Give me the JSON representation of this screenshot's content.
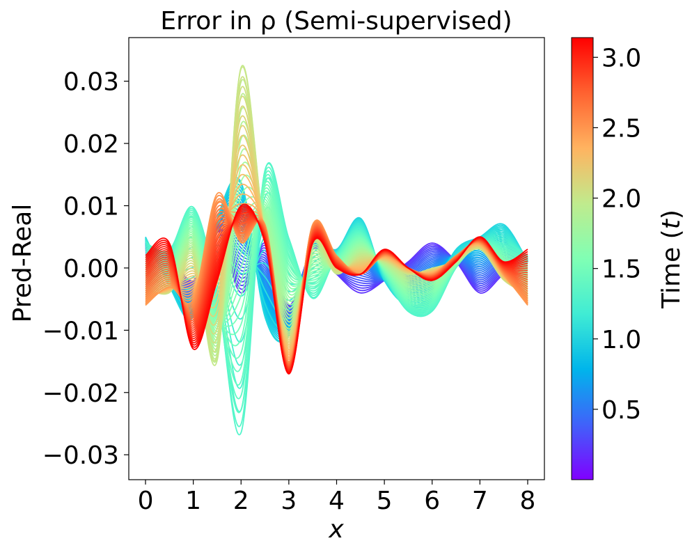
{
  "chart_data": {
    "type": "line",
    "title": "Error in ρ (Semi-supervised)",
    "xlabel": "x",
    "ylabel": "Pred-Real",
    "xlim": [
      -0.35,
      8.35
    ],
    "ylim": [
      -0.034,
      0.037
    ],
    "xticks": [
      0,
      1,
      2,
      3,
      4,
      5,
      6,
      7,
      8
    ],
    "xtick_labels": [
      "0",
      "1",
      "2",
      "3",
      "4",
      "5",
      "6",
      "7",
      "8"
    ],
    "yticks": [
      0.03,
      0.02,
      0.01,
      0.0,
      -0.01,
      -0.02,
      -0.03
    ],
    "ytick_labels": [
      "0.03",
      "0.02",
      "0.01",
      "0.00",
      "−0.01",
      "−0.02",
      "−0.03"
    ],
    "grid": false,
    "colormap": "rainbow",
    "series_note": "family of error curves, one per time t, colored by t",
    "time_range": [
      0.0,
      3.14
    ],
    "series": [
      {
        "t": 0.2,
        "x": [
          0,
          0.5,
          1,
          1.5,
          2,
          2.5,
          3,
          3.5,
          4,
          4.5,
          5,
          5.5,
          6,
          6.5,
          7,
          7.5,
          8
        ],
        "y": [
          0.002,
          0.002,
          -0.002,
          0.006,
          -0.004,
          0.004,
          -0.006,
          0.003,
          -0.001,
          -0.004,
          -0.002,
          0.001,
          0.004,
          0.001,
          -0.004,
          -0.001,
          0.001
        ]
      },
      {
        "t": 1.0,
        "x": [
          0,
          0.5,
          1,
          1.5,
          2,
          2.5,
          3,
          3.5,
          4,
          4.5,
          5,
          5.5,
          6,
          6.5,
          7,
          7.5,
          8
        ],
        "y": [
          0.005,
          -0.003,
          -0.008,
          0.008,
          0.014,
          -0.008,
          -0.011,
          0.004,
          0.003,
          0.008,
          -0.002,
          -0.006,
          -0.004,
          0.003,
          0.005,
          0.007,
          0.001
        ]
      },
      {
        "t": 1.3,
        "x": [
          0,
          0.5,
          1,
          1.5,
          2,
          2.5,
          3,
          3.5,
          4,
          4.5,
          5,
          5.5,
          6,
          6.5,
          7,
          7.5,
          8
        ],
        "y": [
          0.004,
          0.003,
          0.01,
          -0.004,
          -0.027,
          0.016,
          0.005,
          -0.005,
          0.002,
          0.006,
          -0.001,
          -0.007,
          -0.007,
          0.0,
          0.004,
          0.004,
          0.002
        ]
      },
      {
        "t": 2.0,
        "x": [
          0,
          0.5,
          1,
          1.5,
          2,
          2.5,
          3,
          3.5,
          4,
          4.5,
          5,
          5.5,
          6,
          6.5,
          7,
          7.5,
          8
        ],
        "y": [
          -0.003,
          -0.004,
          0.002,
          -0.015,
          0.033,
          0.005,
          -0.01,
          0.004,
          -0.001,
          0.002,
          0.001,
          -0.001,
          0.0,
          0.001,
          0.003,
          -0.002,
          -0.004
        ]
      },
      {
        "t": 2.5,
        "x": [
          0,
          0.5,
          1,
          1.5,
          2,
          2.5,
          3,
          3.5,
          4,
          4.5,
          5,
          5.5,
          6,
          6.5,
          7,
          7.5,
          8
        ],
        "y": [
          -0.006,
          -0.003,
          -0.005,
          0.012,
          0.004,
          0.007,
          -0.015,
          0.007,
          0.002,
          -0.001,
          0.002,
          0.0,
          -0.001,
          0.002,
          0.004,
          -0.001,
          -0.006
        ]
      },
      {
        "t": 3.14,
        "x": [
          0,
          0.5,
          1,
          1.5,
          2,
          2.5,
          3,
          3.5,
          4,
          4.5,
          5,
          5.5,
          6,
          6.5,
          7,
          7.5,
          8
        ],
        "y": [
          0.002,
          0.004,
          -0.013,
          -0.002,
          0.01,
          0.004,
          -0.017,
          0.004,
          0.0,
          -0.001,
          0.003,
          0.0,
          -0.002,
          0.001,
          0.005,
          0.001,
          0.003
        ]
      }
    ],
    "colorbar": {
      "label": "Time (t)",
      "range": [
        0.0,
        3.14
      ],
      "ticks": [
        0.5,
        1.0,
        1.5,
        2.0,
        2.5,
        3.0
      ],
      "tick_labels": [
        "0.5",
        "1.0",
        "1.5",
        "2.0",
        "2.5",
        "3.0"
      ]
    }
  }
}
